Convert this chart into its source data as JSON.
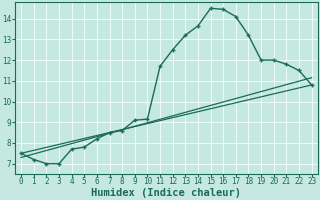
{
  "xlabel": "Humidex (Indice chaleur)",
  "ylabel": "",
  "xlim": [
    -0.5,
    23.5
  ],
  "ylim": [
    6.5,
    14.8
  ],
  "xticks": [
    0,
    1,
    2,
    3,
    4,
    5,
    6,
    7,
    8,
    9,
    10,
    11,
    12,
    13,
    14,
    15,
    16,
    17,
    18,
    19,
    20,
    21,
    22,
    23
  ],
  "yticks": [
    7,
    8,
    9,
    10,
    11,
    12,
    13,
    14
  ],
  "background_color": "#c5e8e0",
  "grid_color": "#f5fffd",
  "line_color": "#1a6b5a",
  "line1_x": [
    0,
    1,
    2,
    3,
    4,
    5,
    6,
    7,
    8,
    9,
    10,
    11,
    12,
    13,
    14,
    15,
    16,
    17,
    18,
    19,
    20,
    21,
    22,
    23
  ],
  "line1_y": [
    7.5,
    7.2,
    7.0,
    7.0,
    7.7,
    7.8,
    8.2,
    8.5,
    8.6,
    9.1,
    9.15,
    11.7,
    12.5,
    13.2,
    13.65,
    14.5,
    14.45,
    14.1,
    13.2,
    12.0,
    12.0,
    11.8,
    11.5,
    10.8
  ],
  "line2_x": [
    0,
    23
  ],
  "line2_y": [
    7.5,
    10.8
  ],
  "line3_x": [
    0,
    23
  ],
  "line3_y": [
    7.3,
    11.15
  ],
  "font_family": "monospace",
  "tick_fontsize": 5.5,
  "label_fontsize": 7.5
}
